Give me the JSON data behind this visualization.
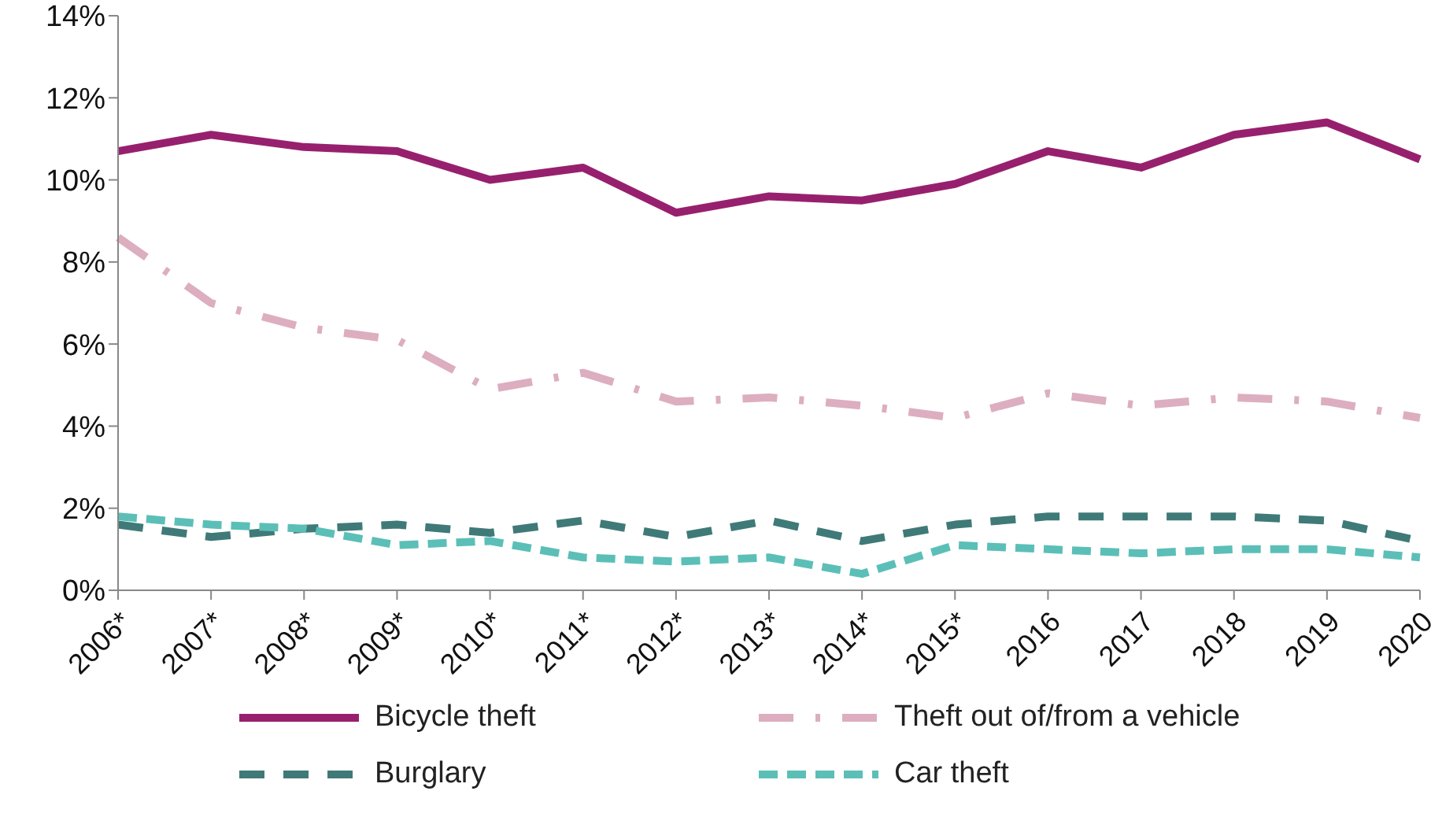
{
  "chart_data": {
    "type": "line",
    "categories": [
      "2006*",
      "2007*",
      "2008*",
      "2009*",
      "2010*",
      "2011*",
      "2012*",
      "2013*",
      "2014*",
      "2015*",
      "2016",
      "2017",
      "2018",
      "2019",
      "2020"
    ],
    "series": [
      {
        "name": "Bicycle theft",
        "color": "#97206e",
        "line_style": "solid",
        "values": [
          10.7,
          11.1,
          10.8,
          10.7,
          10.0,
          10.3,
          9.2,
          9.6,
          9.5,
          9.9,
          10.7,
          10.3,
          11.1,
          11.4,
          10.5
        ]
      },
      {
        "name": "Theft out of/from a vehicle",
        "color": "#dcaebf",
        "line_style": "dashed",
        "values": [
          8.6,
          7.0,
          6.4,
          6.1,
          4.9,
          5.3,
          4.6,
          4.7,
          4.5,
          4.2,
          4.8,
          4.5,
          4.7,
          4.6,
          4.2
        ]
      },
      {
        "name": "Burglary",
        "color": "#3f7a78",
        "line_style": "dashed",
        "values": [
          1.6,
          1.3,
          1.5,
          1.6,
          1.4,
          1.7,
          1.3,
          1.7,
          1.2,
          1.6,
          1.8,
          1.8,
          1.8,
          1.7,
          1.2
        ]
      },
      {
        "name": "Car theft",
        "color": "#5bbfb8",
        "line_style": "dashed",
        "values": [
          1.8,
          1.6,
          1.5,
          1.1,
          1.2,
          0.8,
          0.7,
          0.8,
          0.4,
          1.1,
          1.0,
          0.9,
          1.0,
          1.0,
          0.8
        ]
      }
    ],
    "ylim": [
      0,
      14
    ],
    "yticks": [
      {
        "value": 0,
        "label": "0%"
      },
      {
        "value": 2,
        "label": "2%"
      },
      {
        "value": 4,
        "label": "4%"
      },
      {
        "value": 6,
        "label": "6%"
      },
      {
        "value": 8,
        "label": "8%"
      },
      {
        "value": 10,
        "label": "10%"
      },
      {
        "value": 12,
        "label": "12%"
      },
      {
        "value": 14,
        "label": "14%"
      }
    ],
    "grid": false,
    "legend": "bottom",
    "marker": "none"
  }
}
